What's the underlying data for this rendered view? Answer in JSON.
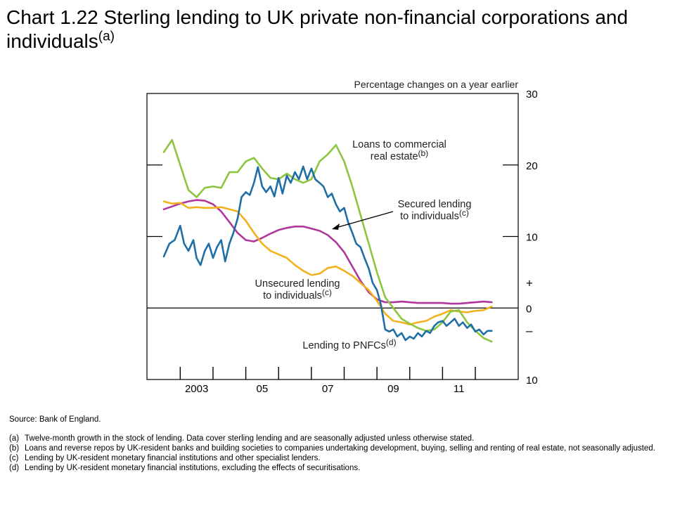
{
  "title": {
    "text": "Chart 1.22  Sterling lending to UK private non-financial corporations and individuals",
    "sup": "(a)"
  },
  "source": "Source:  Bank of England.",
  "footnotes": [
    {
      "label": "(a)",
      "text": "Twelve-month  growth in the stock of lending.  Data cover sterling lending and are seasonally adjusted unless otherwise stated."
    },
    {
      "label": "(b)",
      "text": "Loans and reverse repos by UK-resident banks and building societies to companies undertaking development, buying, selling and renting of real estate, not seasonally adjusted."
    },
    {
      "label": "(c)",
      "text": "Lending by UK-resident monetary financial institutions and other specialist lenders."
    },
    {
      "label": "(d)",
      "text": "Lending by UK-resident monetary financial institutions, excluding the effects of securitisations."
    }
  ],
  "colors": {
    "cre": "#8cc63f",
    "pnfc": "#1f6fa6",
    "secured": "#b0379c",
    "unsecured": "#f2b21e",
    "axis": "#000000"
  },
  "chart_data": {
    "type": "line",
    "units_label": "Percentage changes on a year earlier",
    "x_tick_labels": [
      "2003",
      "05",
      "07",
      "09",
      "11"
    ],
    "x_tick_years": [
      2003,
      2005,
      2007,
      2009,
      2011
    ],
    "xlim": [
      2002.5,
      2012.75
    ],
    "ylim": [
      -10,
      30
    ],
    "y_ticks": [
      30,
      20,
      10,
      0,
      -10
    ],
    "y_tick_labels": [
      "30",
      "20",
      "10",
      "0",
      "10"
    ],
    "sign_labels": [
      "+",
      "–"
    ],
    "zero_line": true,
    "annotations": {
      "cre": {
        "line1": "Loans to commercial",
        "line2": "real estate",
        "sup": "(b)"
      },
      "secured": {
        "line1": "Secured lending",
        "line2": "to individuals",
        "sup": "(c)"
      },
      "unsecured": {
        "line1": "Unsecured lending",
        "line2": "to individuals",
        "sup": "(c)"
      },
      "pnfc": {
        "line1": "Lending to PNFCs",
        "sup": "(d)"
      }
    },
    "series": [
      {
        "name": "Loans to commercial real estate",
        "key": "cre",
        "points": [
          [
            2002.5,
            21.8
          ],
          [
            2002.75,
            23.5
          ],
          [
            2003.0,
            20.0
          ],
          [
            2003.25,
            16.5
          ],
          [
            2003.5,
            15.5
          ],
          [
            2003.75,
            16.8
          ],
          [
            2004.0,
            17.0
          ],
          [
            2004.25,
            16.8
          ],
          [
            2004.5,
            19.0
          ],
          [
            2004.75,
            19.0
          ],
          [
            2005.0,
            20.5
          ],
          [
            2005.25,
            21.0
          ],
          [
            2005.5,
            19.5
          ],
          [
            2005.75,
            18.2
          ],
          [
            2006.0,
            18.0
          ],
          [
            2006.25,
            18.8
          ],
          [
            2006.5,
            18.0
          ],
          [
            2006.75,
            17.5
          ],
          [
            2007.0,
            18.0
          ],
          [
            2007.25,
            20.5
          ],
          [
            2007.5,
            21.5
          ],
          [
            2007.75,
            22.8
          ],
          [
            2008.0,
            20.5
          ],
          [
            2008.25,
            17.0
          ],
          [
            2008.5,
            13.0
          ],
          [
            2008.75,
            9.0
          ],
          [
            2009.0,
            5.0
          ],
          [
            2009.25,
            1.5
          ],
          [
            2009.5,
            0.0
          ],
          [
            2009.75,
            -1.5
          ],
          [
            2010.0,
            -2.2
          ],
          [
            2010.25,
            -2.8
          ],
          [
            2010.5,
            -3.2
          ],
          [
            2010.75,
            -3.0
          ],
          [
            2011.0,
            -2.0
          ],
          [
            2011.25,
            -0.5
          ],
          [
            2011.5,
            -0.3
          ],
          [
            2011.75,
            -2.0
          ],
          [
            2012.0,
            -3.2
          ],
          [
            2012.25,
            -4.2
          ],
          [
            2012.5,
            -4.7
          ]
        ]
      },
      {
        "name": "Secured lending to individuals",
        "key": "secured",
        "points": [
          [
            2002.5,
            13.8
          ],
          [
            2002.75,
            14.2
          ],
          [
            2003.0,
            14.6
          ],
          [
            2003.25,
            14.9
          ],
          [
            2003.5,
            15.1
          ],
          [
            2003.75,
            15.0
          ],
          [
            2004.0,
            14.5
          ],
          [
            2004.25,
            13.5
          ],
          [
            2004.5,
            12.0
          ],
          [
            2004.75,
            10.5
          ],
          [
            2005.0,
            9.5
          ],
          [
            2005.25,
            9.3
          ],
          [
            2005.5,
            9.8
          ],
          [
            2005.75,
            10.4
          ],
          [
            2006.0,
            10.9
          ],
          [
            2006.25,
            11.2
          ],
          [
            2006.5,
            11.4
          ],
          [
            2006.75,
            11.4
          ],
          [
            2007.0,
            11.1
          ],
          [
            2007.25,
            10.8
          ],
          [
            2007.5,
            10.2
          ],
          [
            2007.75,
            9.2
          ],
          [
            2008.0,
            7.8
          ],
          [
            2008.25,
            5.8
          ],
          [
            2008.5,
            3.8
          ],
          [
            2008.75,
            2.2
          ],
          [
            2009.0,
            1.2
          ],
          [
            2009.25,
            0.8
          ],
          [
            2009.5,
            0.8
          ],
          [
            2009.75,
            0.9
          ],
          [
            2010.0,
            0.8
          ],
          [
            2010.25,
            0.7
          ],
          [
            2010.5,
            0.7
          ],
          [
            2010.75,
            0.7
          ],
          [
            2011.0,
            0.7
          ],
          [
            2011.25,
            0.6
          ],
          [
            2011.5,
            0.6
          ],
          [
            2011.75,
            0.7
          ],
          [
            2012.0,
            0.8
          ],
          [
            2012.25,
            0.9
          ],
          [
            2012.5,
            0.8
          ]
        ]
      },
      {
        "name": "Unsecured lending to individuals",
        "key": "unsecured",
        "points": [
          [
            2002.5,
            14.9
          ],
          [
            2002.75,
            14.6
          ],
          [
            2003.0,
            14.7
          ],
          [
            2003.25,
            14.0
          ],
          [
            2003.5,
            14.1
          ],
          [
            2003.75,
            14.0
          ],
          [
            2004.0,
            14.0
          ],
          [
            2004.25,
            14.1
          ],
          [
            2004.5,
            13.8
          ],
          [
            2004.75,
            13.5
          ],
          [
            2005.0,
            12.2
          ],
          [
            2005.25,
            10.5
          ],
          [
            2005.5,
            9.0
          ],
          [
            2005.75,
            8.0
          ],
          [
            2006.0,
            7.5
          ],
          [
            2006.25,
            7.0
          ],
          [
            2006.5,
            6.0
          ],
          [
            2006.75,
            5.2
          ],
          [
            2007.0,
            4.6
          ],
          [
            2007.25,
            4.8
          ],
          [
            2007.5,
            5.6
          ],
          [
            2007.75,
            5.8
          ],
          [
            2008.0,
            5.2
          ],
          [
            2008.25,
            4.5
          ],
          [
            2008.5,
            3.5
          ],
          [
            2008.75,
            2.5
          ],
          [
            2009.0,
            1.0
          ],
          [
            2009.25,
            -0.8
          ],
          [
            2009.5,
            -1.8
          ],
          [
            2009.75,
            -2.0
          ],
          [
            2010.0,
            -2.3
          ],
          [
            2010.25,
            -2.0
          ],
          [
            2010.5,
            -1.8
          ],
          [
            2010.75,
            -1.2
          ],
          [
            2011.0,
            -0.8
          ],
          [
            2011.25,
            -0.3
          ],
          [
            2011.5,
            -0.5
          ],
          [
            2011.75,
            -0.6
          ],
          [
            2012.0,
            -0.4
          ],
          [
            2012.25,
            -0.3
          ],
          [
            2012.5,
            0.2
          ]
        ]
      },
      {
        "name": "Lending to PNFCs",
        "key": "pnfc",
        "points": [
          [
            2002.5,
            7.2
          ],
          [
            2002.67,
            9.0
          ],
          [
            2002.83,
            9.5
          ],
          [
            2003.0,
            11.5
          ],
          [
            2003.12,
            9.0
          ],
          [
            2003.25,
            8.0
          ],
          [
            2003.4,
            9.5
          ],
          [
            2003.5,
            7.0
          ],
          [
            2003.62,
            6.0
          ],
          [
            2003.75,
            8.0
          ],
          [
            2003.87,
            9.0
          ],
          [
            2004.0,
            7.0
          ],
          [
            2004.12,
            8.5
          ],
          [
            2004.25,
            9.5
          ],
          [
            2004.37,
            6.5
          ],
          [
            2004.5,
            9.0
          ],
          [
            2004.62,
            10.5
          ],
          [
            2004.75,
            12.5
          ],
          [
            2004.87,
            15.5
          ],
          [
            2005.0,
            16.2
          ],
          [
            2005.12,
            15.8
          ],
          [
            2005.25,
            17.5
          ],
          [
            2005.37,
            19.7
          ],
          [
            2005.5,
            17.0
          ],
          [
            2005.62,
            16.2
          ],
          [
            2005.75,
            17.0
          ],
          [
            2005.87,
            15.6
          ],
          [
            2006.0,
            18.2
          ],
          [
            2006.12,
            16.0
          ],
          [
            2006.25,
            18.5
          ],
          [
            2006.37,
            17.5
          ],
          [
            2006.5,
            19.0
          ],
          [
            2006.62,
            18.0
          ],
          [
            2006.75,
            19.8
          ],
          [
            2006.87,
            18.0
          ],
          [
            2007.0,
            19.5
          ],
          [
            2007.12,
            18.0
          ],
          [
            2007.25,
            17.5
          ],
          [
            2007.37,
            17.0
          ],
          [
            2007.5,
            15.5
          ],
          [
            2007.62,
            16.0
          ],
          [
            2007.75,
            14.5
          ],
          [
            2007.87,
            13.5
          ],
          [
            2008.0,
            14.0
          ],
          [
            2008.12,
            12.0
          ],
          [
            2008.25,
            10.5
          ],
          [
            2008.37,
            9.0
          ],
          [
            2008.5,
            8.5
          ],
          [
            2008.62,
            7.0
          ],
          [
            2008.75,
            5.5
          ],
          [
            2008.87,
            3.5
          ],
          [
            2009.0,
            2.5
          ],
          [
            2009.12,
            0.5
          ],
          [
            2009.25,
            -3.0
          ],
          [
            2009.37,
            -3.3
          ],
          [
            2009.5,
            -3.0
          ],
          [
            2009.62,
            -4.0
          ],
          [
            2009.75,
            -3.5
          ],
          [
            2009.87,
            -4.5
          ],
          [
            2010.0,
            -4.0
          ],
          [
            2010.12,
            -4.3
          ],
          [
            2010.25,
            -3.5
          ],
          [
            2010.37,
            -4.0
          ],
          [
            2010.5,
            -3.2
          ],
          [
            2010.62,
            -3.5
          ],
          [
            2010.75,
            -2.5
          ],
          [
            2010.87,
            -2.0
          ],
          [
            2011.0,
            -1.8
          ],
          [
            2011.12,
            -2.5
          ],
          [
            2011.25,
            -2.0
          ],
          [
            2011.37,
            -1.5
          ],
          [
            2011.5,
            -2.5
          ],
          [
            2011.62,
            -2.0
          ],
          [
            2011.75,
            -2.8
          ],
          [
            2011.87,
            -2.3
          ],
          [
            2012.0,
            -3.3
          ],
          [
            2012.12,
            -3.0
          ],
          [
            2012.25,
            -3.7
          ],
          [
            2012.37,
            -3.2
          ],
          [
            2012.5,
            -3.2
          ]
        ]
      }
    ]
  }
}
